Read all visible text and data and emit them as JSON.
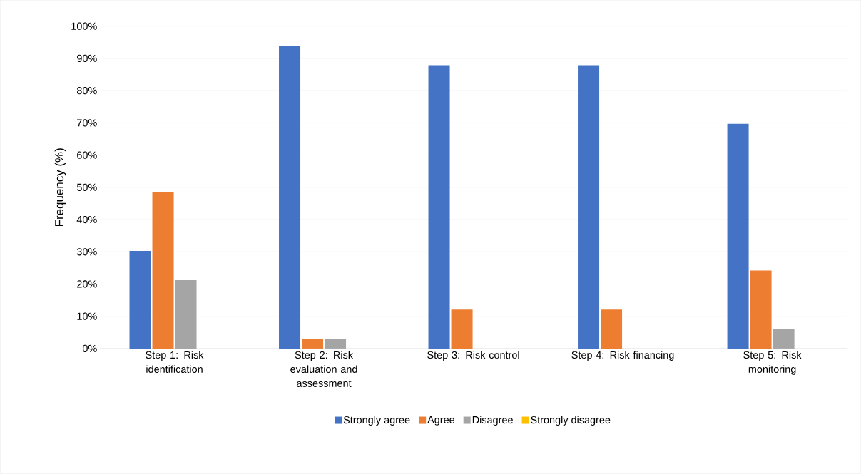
{
  "chart_data": {
    "type": "bar",
    "ylabel": "Frequency (%)",
    "categories": [
      "Step 1: Risk identification",
      "Step 2: Risk evaluation and assessment",
      "Step 3: Risk control",
      "Step 4: Risk financing",
      "Step 5: Risk monitoring"
    ],
    "series": [
      {
        "name": "Strongly agree",
        "color": "#4472c4",
        "values": [
          30.3,
          93.9,
          87.9,
          87.9,
          69.7
        ]
      },
      {
        "name": "Agree",
        "color": "#ed7d31",
        "values": [
          48.5,
          3.0,
          12.1,
          12.1,
          24.2
        ]
      },
      {
        "name": "Disagree",
        "color": "#a5a5a5",
        "values": [
          21.2,
          3.0,
          0,
          0,
          6.1
        ]
      },
      {
        "name": "Strongly disagree",
        "color": "#ffc000",
        "values": [
          0,
          0,
          0,
          0,
          0
        ]
      }
    ],
    "ylim": [
      0,
      100
    ],
    "yticks": [
      {
        "value": 0,
        "label": "0%"
      },
      {
        "value": 10,
        "label": "10%"
      },
      {
        "value": 20,
        "label": "20%"
      },
      {
        "value": 30,
        "label": "30%"
      },
      {
        "value": 40,
        "label": "40%"
      },
      {
        "value": 50,
        "label": "50%"
      },
      {
        "value": 60,
        "label": "60%"
      },
      {
        "value": 70,
        "label": "70%"
      },
      {
        "value": 80,
        "label": "80%"
      },
      {
        "value": 90,
        "label": "90%"
      },
      {
        "value": 100,
        "label": "100%"
      }
    ],
    "grid": "y",
    "legend": "bottom"
  }
}
